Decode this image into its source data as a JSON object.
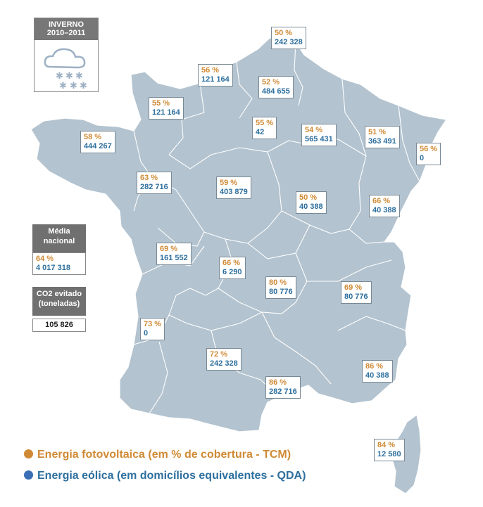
{
  "season": {
    "title_line1": "INVERNO",
    "title_line2": "2010–2011",
    "icon": "snow-cloud-icon"
  },
  "national": {
    "title_line1": "Média",
    "title_line2": "nacional",
    "pct": "64 %",
    "value": "4 017 318"
  },
  "co2": {
    "title_line1": "CO2 evitado",
    "title_line2": "(toneladas)",
    "value": "105 826"
  },
  "colors": {
    "solar": "#d08a35",
    "wind": "#2d6f9e",
    "land": "#b3c3cf"
  },
  "regions": [
    {
      "pct": "50 %",
      "value": "242 328"
    },
    {
      "pct": "56 %",
      "value": "121 164"
    },
    {
      "pct": "52 %",
      "value": "484 655"
    },
    {
      "pct": "55 %",
      "value": "121 164"
    },
    {
      "pct": "55 %",
      "value": "42"
    },
    {
      "pct": "54 %",
      "value": "565 431"
    },
    {
      "pct": "51 %",
      "value": "363 491"
    },
    {
      "pct": "56 %",
      "value": "0"
    },
    {
      "pct": "58 %",
      "value": "444 267"
    },
    {
      "pct": "63 %",
      "value": "282 716"
    },
    {
      "pct": "59 %",
      "value": "403 879"
    },
    {
      "pct": "50 %",
      "value": "40 388"
    },
    {
      "pct": "66 %",
      "value": "40 388"
    },
    {
      "pct": "69 %",
      "value": "161 552"
    },
    {
      "pct": "66 %",
      "value": "6 290"
    },
    {
      "pct": "80 %",
      "value": "80 776"
    },
    {
      "pct": "69 %",
      "value": "80 776"
    },
    {
      "pct": "73 %",
      "value": "0"
    },
    {
      "pct": "72 %",
      "value": "242 328"
    },
    {
      "pct": "86 %",
      "value": "282 716"
    },
    {
      "pct": "86 %",
      "value": "40 388"
    },
    {
      "pct": "84 %",
      "value": "12 580"
    }
  ],
  "legend": {
    "solar": "Energia fotovoltaica (em % de cobertura - TCM)",
    "wind": "Energia eólica (em domicílios equivalentes - QDA)"
  }
}
